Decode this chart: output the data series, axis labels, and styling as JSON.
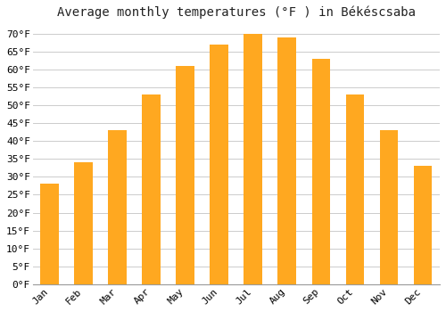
{
  "title": "Average monthly temperatures (°F ) in Békéscsaba",
  "months": [
    "Jan",
    "Feb",
    "Mar",
    "Apr",
    "May",
    "Jun",
    "Jul",
    "Aug",
    "Sep",
    "Oct",
    "Nov",
    "Dec"
  ],
  "values": [
    28,
    34,
    43,
    53,
    61,
    67,
    70,
    69,
    63,
    53,
    43,
    33
  ],
  "bar_color": "#FFA820",
  "bar_edge_color": "none",
  "background_color": "#FFFFFF",
  "grid_color": "#CCCCCC",
  "ylim": [
    0,
    72
  ],
  "yticks": [
    0,
    5,
    10,
    15,
    20,
    25,
    30,
    35,
    40,
    45,
    50,
    55,
    60,
    65,
    70
  ],
  "title_fontsize": 10,
  "tick_fontsize": 8,
  "bar_width": 0.55,
  "figsize": [
    5.0,
    3.5
  ],
  "dpi": 100
}
